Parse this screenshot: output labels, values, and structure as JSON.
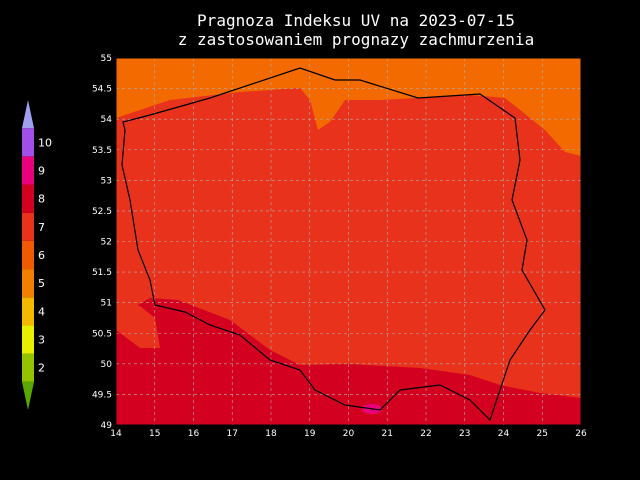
{
  "title": [
    "Pragnoza Indeksu UV na 2023-07-15",
    "z zastosowaniem prognazy zachmurzenia"
  ],
  "map": {
    "xlim": [
      14,
      26
    ],
    "ylim": [
      49,
      55
    ],
    "xticks": [
      14,
      15,
      16,
      17,
      18,
      19,
      20,
      21,
      22,
      23,
      24,
      25,
      26
    ],
    "yticks": [
      49,
      49.5,
      50,
      50.5,
      51,
      51.5,
      52,
      52.5,
      53,
      53.5,
      54,
      54.5,
      55
    ],
    "grid": true
  },
  "colorbar": {
    "labels": [
      2,
      3,
      4,
      5,
      6,
      7,
      8,
      9,
      10
    ],
    "colors": [
      "#58a800",
      "#94c400",
      "#e8f000",
      "#f4b800",
      "#f28000",
      "#f05a00",
      "#e8321c",
      "#d40020",
      "#e8007c",
      "#a050e8",
      "#a0a0f0"
    ]
  }
}
